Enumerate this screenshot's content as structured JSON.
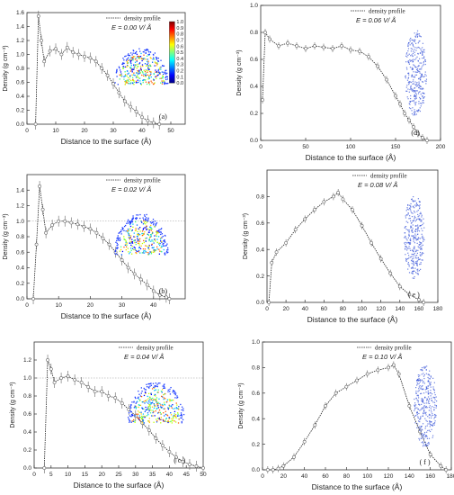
{
  "colors": {
    "axis": "#333333",
    "series": "#666666",
    "series_dark": "#222222",
    "reference_line": "#999999",
    "colorbar_stops": [
      "#00007f",
      "#0000ff",
      "#0080ff",
      "#00ffff",
      "#80ff80",
      "#ffff00",
      "#ff8000",
      "#ff0000",
      "#7f0000"
    ],
    "droplet_blue": "#3a55d8"
  },
  "chart_data": [
    {
      "id": "a",
      "type": "line",
      "panel_label": "(a)",
      "xlabel": "Distance to the surface (Å)",
      "ylabel": "Density (g cm⁻³)",
      "xlim": [
        0,
        55
      ],
      "ylim": [
        0,
        1.6
      ],
      "xticks": [
        0,
        10,
        20,
        30,
        40,
        50
      ],
      "yticks": [
        0.0,
        0.2,
        0.4,
        0.6,
        0.8,
        1.0,
        1.2,
        1.4,
        1.6
      ],
      "series": [
        {
          "name": "density profile",
          "x": [
            3,
            4,
            5,
            6,
            8,
            10,
            12,
            14,
            16,
            18,
            20,
            22,
            24,
            26,
            28,
            30,
            32,
            34,
            36,
            38,
            40,
            42,
            44,
            46
          ],
          "y": [
            0.0,
            1.55,
            1.2,
            0.9,
            1.05,
            1.08,
            1.0,
            1.1,
            1.03,
            1.0,
            0.97,
            0.95,
            0.9,
            0.8,
            0.7,
            0.58,
            0.45,
            0.33,
            0.25,
            0.18,
            0.1,
            0.05,
            0.02,
            0.0
          ]
        }
      ],
      "field_label": "E = 0.00 V/ Å",
      "inset": "droplet",
      "inset_shape": "dome",
      "colorbar": {
        "ticks": [
          "1.0",
          "0.9",
          "0.8",
          "0.7",
          "0.6",
          "0.5",
          "0.4",
          "0.3",
          "0.2",
          "0.1",
          "0.0"
        ]
      }
    },
    {
      "id": "d",
      "type": "line",
      "panel_label": "(d)",
      "xlabel": "Distance to the surface (Å)",
      "ylabel": "Density (g cm⁻³)",
      "xlim": [
        0,
        200
      ],
      "ylim": [
        0,
        1.0
      ],
      "xticks": [
        0,
        50,
        100,
        150,
        200
      ],
      "yticks": [
        0.0,
        0.2,
        0.4,
        0.6,
        0.8,
        1.0
      ],
      "series": [
        {
          "name": "density profile",
          "x": [
            2,
            5,
            10,
            20,
            30,
            40,
            50,
            60,
            70,
            80,
            90,
            100,
            110,
            120,
            130,
            140,
            150,
            155,
            160,
            165,
            170,
            175,
            180,
            185
          ],
          "y": [
            0.3,
            0.8,
            0.75,
            0.7,
            0.72,
            0.7,
            0.68,
            0.7,
            0.69,
            0.68,
            0.7,
            0.67,
            0.66,
            0.62,
            0.55,
            0.45,
            0.33,
            0.27,
            0.2,
            0.15,
            0.1,
            0.05,
            0.02,
            0.0
          ]
        }
      ],
      "field_label": "E = 0.06 V/ Å",
      "inset": "droplet",
      "inset_shape": "column"
    },
    {
      "id": "b",
      "type": "line",
      "panel_label": "(b)",
      "xlabel": "Distance to the surface (Å)",
      "ylabel": "Density (g cm⁻³)",
      "xlim": [
        0,
        50
      ],
      "ylim": [
        0,
        1.6
      ],
      "xticks": [
        0,
        10,
        20,
        30,
        40
      ],
      "yticks": [
        0.0,
        0.2,
        0.4,
        0.6,
        0.8,
        1.0,
        1.2,
        1.4
      ],
      "reference_line": 1.0,
      "series": [
        {
          "name": "density profile",
          "x": [
            2,
            3,
            4,
            5,
            6,
            8,
            10,
            12,
            14,
            16,
            18,
            20,
            22,
            24,
            26,
            28,
            30,
            32,
            34,
            36,
            38,
            40,
            42,
            44,
            45
          ],
          "y": [
            0.0,
            0.7,
            1.45,
            1.15,
            0.85,
            0.95,
            1.0,
            1.0,
            0.98,
            0.96,
            0.93,
            0.9,
            0.85,
            0.78,
            0.7,
            0.6,
            0.5,
            0.4,
            0.32,
            0.25,
            0.18,
            0.1,
            0.05,
            0.02,
            0.0
          ]
        }
      ],
      "field_label": "E = 0.02 V/ Å",
      "inset": "droplet",
      "inset_shape": "dome"
    },
    {
      "id": "e",
      "type": "line",
      "panel_label": "( e )",
      "xlabel": "Distance to the surface (Å)",
      "ylabel": "Density (g cm⁻³)",
      "xlim": [
        0,
        180
      ],
      "ylim": [
        0,
        1.0
      ],
      "xticks": [
        0,
        20,
        40,
        60,
        80,
        100,
        120,
        140,
        160,
        180
      ],
      "yticks": [
        0.0,
        0.2,
        0.4,
        0.6,
        0.8
      ],
      "series": [
        {
          "name": "density profile",
          "x": [
            2,
            5,
            10,
            20,
            30,
            40,
            50,
            60,
            70,
            75,
            80,
            90,
            100,
            110,
            120,
            130,
            140,
            150,
            160,
            165
          ],
          "y": [
            0.0,
            0.3,
            0.38,
            0.45,
            0.55,
            0.63,
            0.7,
            0.76,
            0.8,
            0.83,
            0.78,
            0.7,
            0.58,
            0.45,
            0.33,
            0.22,
            0.12,
            0.06,
            0.02,
            0.0
          ]
        }
      ],
      "field_label": "E = 0.08 V/ Å",
      "inset": "droplet",
      "inset_shape": "column"
    },
    {
      "id": "c",
      "type": "line",
      "panel_label": "( c )",
      "xlabel": "Distance to the surface (Å)",
      "ylabel": "Density (g cm⁻³)",
      "xlim": [
        0,
        50
      ],
      "ylim": [
        0,
        1.4
      ],
      "xticks": [
        0,
        5,
        10,
        15,
        20,
        25,
        30,
        35,
        40,
        45,
        50
      ],
      "yticks": [
        0.0,
        0.2,
        0.4,
        0.6,
        0.8,
        1.0,
        1.2
      ],
      "reference_line": 1.0,
      "series": [
        {
          "name": "density profile",
          "x": [
            3,
            4,
            5,
            6,
            8,
            10,
            12,
            14,
            16,
            18,
            20,
            22,
            24,
            26,
            28,
            30,
            32,
            34,
            36,
            38,
            40,
            42,
            44,
            46,
            48,
            50
          ],
          "y": [
            0.0,
            1.2,
            1.1,
            0.95,
            1.0,
            1.02,
            0.98,
            0.95,
            0.9,
            0.85,
            0.85,
            0.8,
            0.78,
            0.72,
            0.65,
            0.58,
            0.5,
            0.42,
            0.33,
            0.25,
            0.18,
            0.12,
            0.07,
            0.04,
            0.02,
            0.0
          ]
        }
      ],
      "field_label": "E = 0.04 V/ Å",
      "inset": "droplet",
      "inset_shape": "dome"
    },
    {
      "id": "f",
      "type": "line",
      "panel_label": "( f )",
      "xlabel": "Distance to the surface (Å)",
      "ylabel": "Density (g cm⁻³)",
      "xlim": [
        0,
        180
      ],
      "ylim": [
        0,
        1.0
      ],
      "xticks": [
        0,
        20,
        40,
        60,
        80,
        100,
        120,
        140,
        160,
        180
      ],
      "yticks": [
        0.0,
        0.2,
        0.4,
        0.6,
        0.8,
        1.0
      ],
      "series": [
        {
          "name": "density profile",
          "x": [
            5,
            10,
            15,
            20,
            30,
            40,
            50,
            60,
            70,
            80,
            90,
            100,
            110,
            120,
            125,
            130,
            140,
            150,
            160,
            170,
            175
          ],
          "y": [
            0.0,
            0.0,
            0.01,
            0.03,
            0.1,
            0.22,
            0.35,
            0.5,
            0.6,
            0.65,
            0.7,
            0.75,
            0.78,
            0.8,
            0.82,
            0.75,
            0.5,
            0.3,
            0.12,
            0.03,
            0.0
          ]
        }
      ],
      "field_label": "E = 0.10 V/ Å",
      "inset": "droplet",
      "inset_shape": "column"
    }
  ]
}
